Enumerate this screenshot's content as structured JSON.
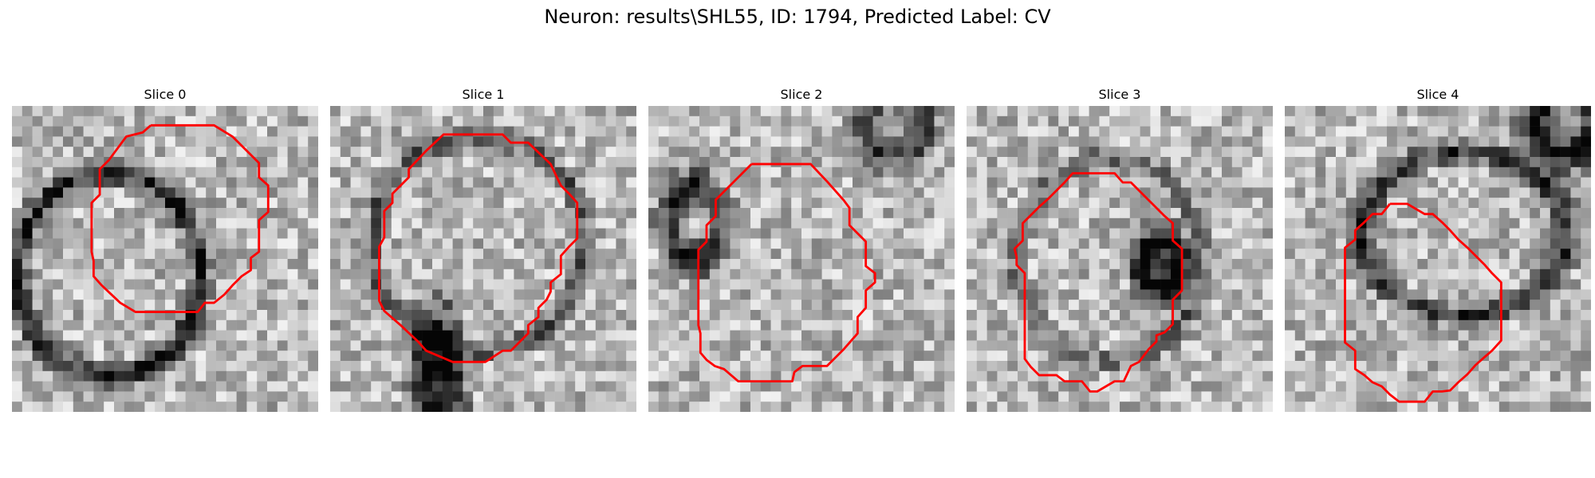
{
  "figure": {
    "title": "Neuron: results\\SHL55, ID: 1794, Predicted Label: CV"
  },
  "panels": [
    {
      "title": "Slice 0",
      "contour_color": "#ff0000"
    },
    {
      "title": "Slice 1",
      "contour_color": "#ff0000"
    },
    {
      "title": "Slice 2",
      "contour_color": "#ff0000"
    },
    {
      "title": "Slice 3",
      "contour_color": "#ff0000"
    },
    {
      "title": "Slice 4",
      "contour_color": "#ff0000"
    }
  ]
}
